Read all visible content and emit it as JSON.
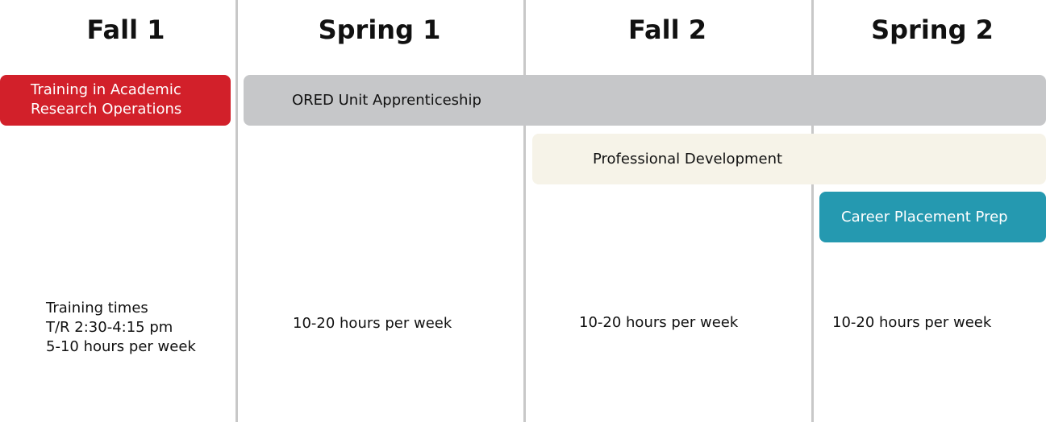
{
  "headers": [
    "Fall 1",
    "Spring 1",
    "Fall 2",
    "Spring 2"
  ],
  "bars": {
    "training": {
      "label_1": "Training in Academic",
      "label_2": "Research Operations",
      "color": "#d2202a"
    },
    "ored": {
      "label": "ORED Unit Apprenticeship",
      "color": "#c6c7c9"
    },
    "profdev": {
      "label": "Professional Development",
      "color": "#f6f3e8"
    },
    "career": {
      "label": "Career Placement Prep",
      "color": "#2599b0"
    }
  },
  "notes": {
    "fall1": [
      "Training times",
      "T/R 2:30-4:15 pm",
      "5-10 hours per week"
    ],
    "spring1": "10-20 hours per week",
    "fall2": "10-20 hours per week",
    "spring2": "10-20 hours per week"
  }
}
